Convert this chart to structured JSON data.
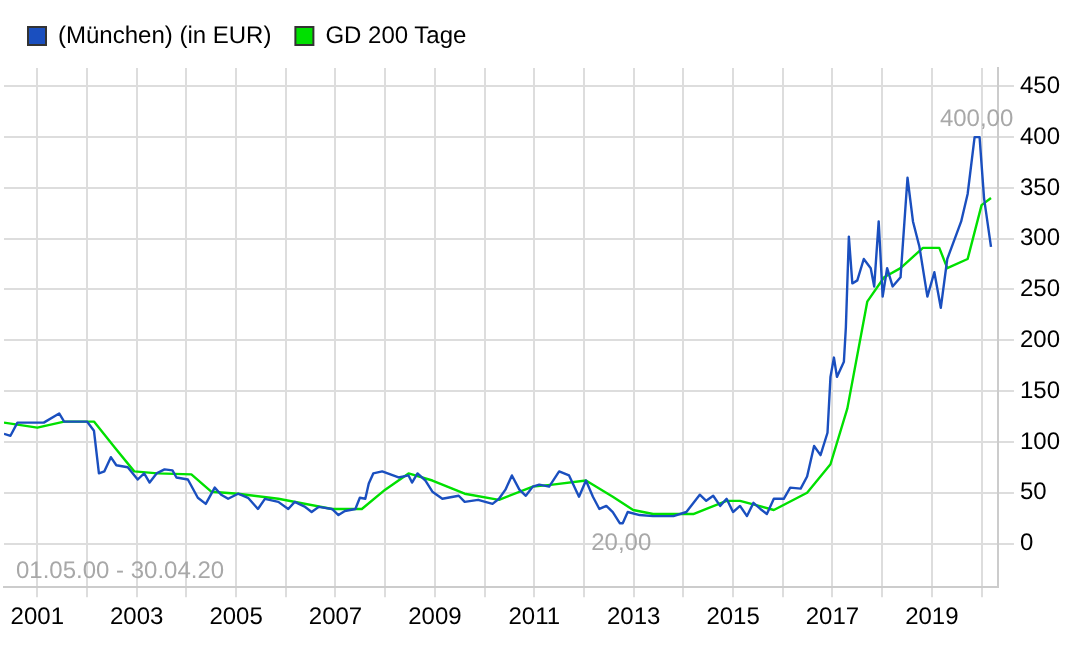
{
  "chart_data": {
    "type": "line",
    "legend": "top left",
    "grid": true,
    "marker": "none",
    "line_style": "solid",
    "xlim": [
      2000.33,
      2020.33
    ],
    "ylim": [
      -43,
      468
    ],
    "xticks": [
      2001,
      {
        "value": 2002,
        "label": null
      },
      2003,
      {
        "value": 2004,
        "label": null
      },
      2005,
      {
        "value": 2006,
        "label": null
      },
      2007,
      {
        "value": 2008,
        "label": null
      },
      2009,
      {
        "value": 2010,
        "label": null
      },
      2011,
      {
        "value": 2012,
        "label": null
      },
      2013,
      {
        "value": 2014,
        "label": null
      },
      2015,
      {
        "value": 2016,
        "label": null
      },
      2017,
      {
        "value": 2018,
        "label": null
      },
      2019,
      {
        "value": 2020,
        "label": null
      }
    ],
    "yticks": [
      0,
      50,
      100,
      150,
      200,
      250,
      300,
      350,
      400,
      450
    ],
    "annotations": [
      "01.05.00 - 30.04.20",
      {
        "text": "400,00",
        "x": 2019.9,
        "y": 400
      },
      {
        "text": "20,00",
        "x": 2012.75,
        "y": 20
      }
    ],
    "series": [
      {
        "name": "(München) (in EUR)",
        "color": "#1a4fbf",
        "x": [
          2000.33,
          2000.46,
          2000.6,
          2000.8,
          2001.13,
          2001.44,
          2001.54,
          2002.0,
          2002.14,
          2002.24,
          2002.35,
          2002.48,
          2002.59,
          2002.82,
          2003.02,
          2003.15,
          2003.26,
          2003.4,
          2003.56,
          2003.72,
          2003.8,
          2004.03,
          2004.23,
          2004.39,
          2004.57,
          2004.7,
          2004.84,
          2005.04,
          2005.24,
          2005.44,
          2005.58,
          2005.85,
          2006.05,
          2006.18,
          2006.39,
          2006.52,
          2006.66,
          2006.93,
          2007.06,
          2007.19,
          2007.4,
          2007.49,
          2007.6,
          2007.67,
          2007.76,
          2007.94,
          2008.27,
          2008.47,
          2008.54,
          2008.65,
          2008.81,
          2008.95,
          2009.15,
          2009.48,
          2009.6,
          2009.87,
          2010.16,
          2010.29,
          2010.42,
          2010.55,
          2010.7,
          2010.83,
          2010.97,
          2011.1,
          2011.3,
          2011.5,
          2011.7,
          2011.9,
          2012.04,
          2012.18,
          2012.31,
          2012.45,
          2012.58,
          2012.72,
          2012.78,
          2012.88,
          2013.12,
          2013.39,
          2013.8,
          2014.06,
          2014.33,
          2014.46,
          2014.6,
          2014.74,
          2014.87,
          2015.0,
          2015.14,
          2015.28,
          2015.41,
          2015.55,
          2015.68,
          2015.82,
          2016.02,
          2016.15,
          2016.36,
          2016.49,
          2016.63,
          2016.76,
          2016.9,
          2016.96,
          2017.03,
          2017.09,
          2017.23,
          2017.27,
          2017.33,
          2017.4,
          2017.5,
          2017.63,
          2017.77,
          2017.84,
          2017.93,
          2018.01,
          2018.1,
          2018.21,
          2018.37,
          2018.51,
          2018.62,
          2018.75,
          2018.91,
          2019.05,
          2019.18,
          2019.31,
          2019.59,
          2019.72,
          2019.86,
          2019.96,
          2020.05,
          2020.19
        ],
        "values": [
          108,
          106,
          119,
          119,
          119,
          128,
          120,
          120,
          111,
          69,
          71,
          85,
          77,
          75,
          63,
          69,
          60,
          69,
          73,
          72,
          65,
          63,
          45,
          39,
          55,
          48,
          44,
          49,
          45,
          34,
          44,
          41,
          34,
          41,
          36,
          31,
          36,
          34,
          28,
          32,
          34,
          45,
          44,
          59,
          69,
          71,
          65,
          67,
          60,
          69,
          62,
          51,
          44,
          47,
          41,
          43,
          39,
          44,
          53,
          67,
          53,
          47,
          56,
          58,
          56,
          71,
          67,
          46,
          62,
          46,
          34,
          37,
          31,
          20,
          20,
          31,
          28,
          27,
          27,
          31,
          48,
          42,
          47,
          37,
          44,
          31,
          37,
          27,
          40,
          34,
          29,
          44,
          44,
          55,
          54,
          66,
          96,
          87,
          109,
          164,
          183,
          164,
          179,
          213,
          302,
          256,
          259,
          280,
          271,
          253,
          317,
          243,
          271,
          253,
          262,
          360,
          317,
          292,
          243,
          267,
          232,
          280,
          317,
          344,
          400,
          400,
          340,
          292
        ]
      },
      {
        "name": "GD 200 Tage",
        "color": "#00e000",
        "x": [
          2000.33,
          2001.0,
          2001.54,
          2002.14,
          2002.55,
          2002.95,
          2003.42,
          2004.1,
          2004.5,
          2005.04,
          2005.85,
          2006.93,
          2007.53,
          2008.0,
          2008.47,
          2008.95,
          2009.6,
          2010.29,
          2010.97,
          2011.37,
          2012.04,
          2012.58,
          2012.99,
          2013.39,
          2014.2,
          2014.87,
          2015.14,
          2015.82,
          2016.49,
          2016.96,
          2017.3,
          2017.7,
          2018.04,
          2018.37,
          2018.82,
          2019.15,
          2019.31,
          2019.72,
          2020.0,
          2020.19
        ],
        "values": [
          119,
          114,
          120,
          120,
          95,
          71,
          69,
          68,
          51,
          49,
          44,
          34,
          34,
          53,
          69,
          62,
          49,
          43,
          56,
          58,
          62,
          46,
          33,
          29,
          29,
          42,
          42,
          33,
          50,
          78,
          133,
          238,
          262,
          271,
          291,
          291,
          271,
          280,
          333,
          340
        ]
      }
    ]
  }
}
